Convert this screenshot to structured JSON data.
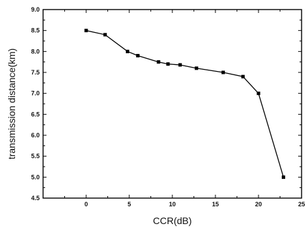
{
  "chart_data": {
    "type": "line",
    "xlabel": "CCR(dB)",
    "ylabel": "transmission distance(km)",
    "xlim": [
      -5,
      25
    ],
    "ylim": [
      4.5,
      9.0
    ],
    "xticks": [
      "0",
      "5",
      "10",
      "15",
      "20",
      "25"
    ],
    "yticks": [
      "4.5",
      "5.0",
      "5.5",
      "6.0",
      "6.5",
      "7.0",
      "7.5",
      "8.0",
      "8.5",
      "9.0"
    ],
    "grid": false,
    "series": [
      {
        "marker": "square",
        "color": "#000000",
        "x": [
          0,
          2.2,
          4.8,
          6.0,
          8.4,
          9.5,
          10.9,
          12.8,
          15.9,
          18.2,
          20.0,
          22.9
        ],
        "y": [
          8.5,
          8.4,
          8.0,
          7.9,
          7.75,
          7.7,
          7.68,
          7.6,
          7.5,
          7.4,
          7.0,
          5.0
        ]
      }
    ]
  }
}
